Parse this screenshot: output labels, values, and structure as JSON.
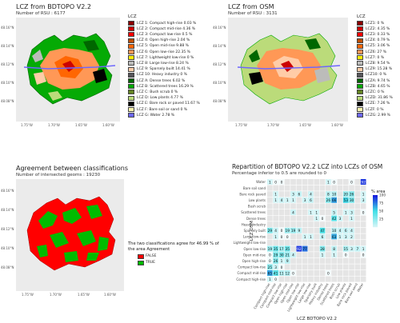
{
  "panel1": {
    "title": "LCZ from   BDTOPO V2.2",
    "subtitle": "Number of RSU : 6177",
    "legend_title": "LCZ",
    "legend": [
      {
        "label": "LCZ 1: Compact high-rise 0.03 %",
        "color": "#8b0101"
      },
      {
        "label": "LCZ 2: Compact mid-rise 4.36 %",
        "color": "#cc0200"
      },
      {
        "label": "LCZ 3: Compact low-rise 0.5 %",
        "color": "#fc0001"
      },
      {
        "label": "LCZ 4: Open high-rise 2.04 %",
        "color": "#be4c03"
      },
      {
        "label": "LCZ 5: Open mid-rise 9.88 %",
        "color": "#ff6602"
      },
      {
        "label": "LCZ 6: Open low-rise 22.35 %",
        "color": "#ff9856"
      },
      {
        "label": "LCZ 7: Lightweight low-rise 0 %",
        "color": "#fbed08"
      },
      {
        "label": "LCZ 8: Large low-rise 8.24 %",
        "color": "#bcbcba"
      },
      {
        "label": "LCZ 9: Sparsely built 14.41 %",
        "color": "#ffcca7"
      },
      {
        "label": "LCZ 10: Heavy industry 0 %",
        "color": "#57555a"
      },
      {
        "label": "LCZ A: Dense trees 6.02 %",
        "color": "#006700"
      },
      {
        "label": "LCZ B: Scattered trees 16.29 %",
        "color": "#05aa05"
      },
      {
        "label": "LCZ C: Bush scrub 0 %",
        "color": "#648423"
      },
      {
        "label": "LCZ D: Low plants 4.77 %",
        "color": "#bbdb7a"
      },
      {
        "label": "LCZ E: Bare rock or paved 11.67 %",
        "color": "#010101"
      },
      {
        "label": "LCZ F: Bare soil or sand 0 %",
        "color": "#fdf6ae"
      },
      {
        "label": "LCZ G: Water 2.78 %",
        "color": "#6d67fd"
      }
    ],
    "lat_ticks": [
      "48.16°N",
      "48.14°N",
      "48.12°N",
      "48.10°N",
      "48.08°N"
    ],
    "lon_ticks": [
      "1.75°W",
      "1.70°W",
      "1.65°W",
      "1.60°W"
    ]
  },
  "panel2": {
    "title": "LCZ from   OSM",
    "subtitle": "Number of RSU : 3131",
    "legend_title": "LCZ",
    "legend": [
      {
        "label": "LCZ1: 0 %",
        "color": "#8b0101"
      },
      {
        "label": "LCZ2: 4.35 %",
        "color": "#cc0200"
      },
      {
        "label": "LCZ3: 0.33 %",
        "color": "#fc0001"
      },
      {
        "label": "LCZ4: 0.79 %",
        "color": "#be4c03"
      },
      {
        "label": "LCZ5: 3.06 %",
        "color": "#ff6602"
      },
      {
        "label": "LCZ6: 27 %",
        "color": "#ff9856"
      },
      {
        "label": "LCZ7: 0 %",
        "color": "#fbed08"
      },
      {
        "label": "LCZ8: 9.54 %",
        "color": "#bcbcba"
      },
      {
        "label": "LCZ9: 15.28 %",
        "color": "#ffcca7"
      },
      {
        "label": "LCZ10: 0 %",
        "color": "#57555a"
      },
      {
        "label": "LCZA: 9.74 %",
        "color": "#006700"
      },
      {
        "label": "LCZB: 4.65 %",
        "color": "#05aa05"
      },
      {
        "label": "LCZC: 0 %",
        "color": "#648423"
      },
      {
        "label": "LCZD: 31.86 %",
        "color": "#bbdb7a"
      },
      {
        "label": "LCZE: 7.26 %",
        "color": "#010101"
      },
      {
        "label": "LCZF: 0 %",
        "color": "#fdf6ae"
      },
      {
        "label": "LCZG: 2.99 %",
        "color": "#6d67fd"
      }
    ],
    "lat_ticks": [
      "48.16°N",
      "48.14°N",
      "48.12°N",
      "48.10°N",
      "48.08°N"
    ],
    "lon_ticks": [
      "1.75°W",
      "1.70°W",
      "1.65°W",
      "1.60°W"
    ]
  },
  "panel3": {
    "title": "Agreement between classifications",
    "subtitle": "Number of intersected geoms : 19230",
    "agreement_text": "The two classifications agree for 46.99 % of the area Agreement",
    "legend": [
      {
        "label": "FALSE",
        "color": "#ff0000"
      },
      {
        "label": "TRUE",
        "color": "#00bb00"
      }
    ],
    "lat_ticks": [
      "48.16°N",
      "48.14°N",
      "48.12°N",
      "48.10°N",
      "48.08°N"
    ],
    "lon_ticks": [
      "1.75°W",
      "1.70°W",
      "1.65°W",
      "1.60°W"
    ]
  },
  "chart_data": [
    {
      "type": "map",
      "title": "LCZ from   BDTOPO V2.2",
      "subtitle": "Number of RSU : 6177"
    },
    {
      "type": "map",
      "title": "LCZ from   OSM",
      "subtitle": "Number of RSU : 3131"
    },
    {
      "type": "map",
      "title": "Agreement between classifications",
      "subtitle": "Number of intersected geoms : 19230"
    },
    {
      "type": "heatmap",
      "title": "Repartition of  BDTOPO V2.2  LCZ into LCZs of  OSM",
      "subtitle": "Percentage inferior to 0.5 are rounded to 0",
      "xlabel": "LCZ  BDTOPO V2.2",
      "ylabel": "LCZ  OSM",
      "x_categories": [
        "Compact high-rise",
        "Compact mid-rise",
        "Compact low-rise",
        "Open high-rise",
        "Open mid-rise",
        "Open low-rise",
        "Lightweight low-rise",
        "Large low-rise",
        "Sparsely built",
        "Heavy industry",
        "Dense trees",
        "Scattered trees",
        "Bush scrub",
        "Low plants",
        "Bare rock paved",
        "Bare soil sand",
        "Water"
      ],
      "y_categories": [
        "Water",
        "Bare soil sand",
        "Bare rock paved",
        "Low plants",
        "Bush scrub",
        "Scattered trees",
        "Dense trees",
        "Heavy industry",
        "Sparsely built",
        "Large low-rise",
        "Lightweight low-rise",
        "Open low-rise",
        "Open mid-rise",
        "Open high-rise",
        "Compact low-rise",
        "Compact mid-rise",
        "Compact high-rise"
      ],
      "cells": [
        {
          "x": 0,
          "y": 0,
          "v": 1
        },
        {
          "x": 1,
          "y": 0,
          "v": 0
        },
        {
          "x": 2,
          "y": 0,
          "v": 0
        },
        {
          "x": 10,
          "y": 0,
          "v": 1
        },
        {
          "x": 11,
          "y": 0,
          "v": 0
        },
        {
          "x": 14,
          "y": 0,
          "v": 0
        },
        {
          "x": 16,
          "y": 0,
          "v": 92
        },
        {
          "x": 1,
          "y": 2,
          "v": 1
        },
        {
          "x": 4,
          "y": 2,
          "v": 3
        },
        {
          "x": 5,
          "y": 2,
          "v": 6
        },
        {
          "x": 7,
          "y": 2,
          "v": 4
        },
        {
          "x": 10,
          "y": 2,
          "v": 8
        },
        {
          "x": 11,
          "y": 2,
          "v": 10
        },
        {
          "x": 13,
          "y": 2,
          "v": 20
        },
        {
          "x": 14,
          "y": 2,
          "v": 26
        },
        {
          "x": 16,
          "y": 2,
          "v": 1
        },
        {
          "x": 1,
          "y": 3,
          "v": 1
        },
        {
          "x": 2,
          "y": 3,
          "v": 4
        },
        {
          "x": 3,
          "y": 3,
          "v": 1
        },
        {
          "x": 4,
          "y": 3,
          "v": 1
        },
        {
          "x": 6,
          "y": 3,
          "v": 3
        },
        {
          "x": 7,
          "y": 3,
          "v": 6
        },
        {
          "x": 10,
          "y": 3,
          "v": 26
        },
        {
          "x": 11,
          "y": 3,
          "v": 66
        },
        {
          "x": 13,
          "y": 3,
          "v": 53
        },
        {
          "x": 14,
          "y": 3,
          "v": 30
        },
        {
          "x": 16,
          "y": 3,
          "v": 3
        },
        {
          "x": 4,
          "y": 5,
          "v": 4
        },
        {
          "x": 7,
          "y": 5,
          "v": 1
        },
        {
          "x": 8,
          "y": 5,
          "v": 1
        },
        {
          "x": 11,
          "y": 5,
          "v": 5
        },
        {
          "x": 13,
          "y": 5,
          "v": 1
        },
        {
          "x": 14,
          "y": 5,
          "v": 3
        },
        {
          "x": 16,
          "y": 5,
          "v": 0
        },
        {
          "x": 8,
          "y": 6,
          "v": 1
        },
        {
          "x": 9,
          "y": 6,
          "v": 0
        },
        {
          "x": 11,
          "y": 6,
          "v": 42
        },
        {
          "x": 12,
          "y": 6,
          "v": 3
        },
        {
          "x": 14,
          "y": 6,
          "v": 1
        },
        {
          "x": 0,
          "y": 8,
          "v": 29
        },
        {
          "x": 1,
          "y": 8,
          "v": 4
        },
        {
          "x": 2,
          "y": 8,
          "v": 0
        },
        {
          "x": 3,
          "y": 8,
          "v": 19
        },
        {
          "x": 4,
          "y": 8,
          "v": 19
        },
        {
          "x": 5,
          "y": 8,
          "v": 9
        },
        {
          "x": 9,
          "y": 8,
          "v": 47
        },
        {
          "x": 11,
          "y": 8,
          "v": 10
        },
        {
          "x": 12,
          "y": 8,
          "v": 4
        },
        {
          "x": 13,
          "y": 8,
          "v": 6
        },
        {
          "x": 14,
          "y": 8,
          "v": 4
        },
        {
          "x": 1,
          "y": 9,
          "v": 1
        },
        {
          "x": 2,
          "y": 9,
          "v": 0
        },
        {
          "x": 3,
          "y": 9,
          "v": 0
        },
        {
          "x": 6,
          "y": 9,
          "v": 1
        },
        {
          "x": 7,
          "y": 9,
          "v": 1
        },
        {
          "x": 9,
          "y": 9,
          "v": 6
        },
        {
          "x": 11,
          "y": 9,
          "v": 63
        },
        {
          "x": 12,
          "y": 9,
          "v": 1
        },
        {
          "x": 13,
          "y": 9,
          "v": 3
        },
        {
          "x": 14,
          "y": 9,
          "v": 2
        },
        {
          "x": 0,
          "y": 11,
          "v": 19
        },
        {
          "x": 1,
          "y": 11,
          "v": 35
        },
        {
          "x": 2,
          "y": 11,
          "v": 17
        },
        {
          "x": 3,
          "y": 11,
          "v": 35
        },
        {
          "x": 5,
          "y": 11,
          "v": 92
        },
        {
          "x": 6,
          "y": 11,
          "v": 77
        },
        {
          "x": 9,
          "y": 11,
          "v": 28
        },
        {
          "x": 11,
          "y": 11,
          "v": 8
        },
        {
          "x": 13,
          "y": 11,
          "v": 15
        },
        {
          "x": 14,
          "y": 11,
          "v": 3
        },
        {
          "x": 15,
          "y": 11,
          "v": 7
        },
        {
          "x": 16,
          "y": 11,
          "v": 1
        },
        {
          "x": 0,
          "y": 12,
          "v": 0
        },
        {
          "x": 1,
          "y": 12,
          "v": 29
        },
        {
          "x": 2,
          "y": 12,
          "v": 30
        },
        {
          "x": 3,
          "y": 12,
          "v": 21
        },
        {
          "x": 4,
          "y": 12,
          "v": 4
        },
        {
          "x": 9,
          "y": 12,
          "v": 1
        },
        {
          "x": 11,
          "y": 12,
          "v": 1
        },
        {
          "x": 13,
          "y": 12,
          "v": 0
        },
        {
          "x": 16,
          "y": 12,
          "v": 0
        },
        {
          "x": 0,
          "y": 13,
          "v": 0
        },
        {
          "x": 1,
          "y": 13,
          "v": 26
        },
        {
          "x": 2,
          "y": 13,
          "v": 1
        },
        {
          "x": 3,
          "y": 13,
          "v": 9
        },
        {
          "x": 0,
          "y": 14,
          "v": 25
        },
        {
          "x": 1,
          "y": 14,
          "v": 3
        },
        {
          "x": 2,
          "y": 14,
          "v": 0
        },
        {
          "x": 0,
          "y": 15,
          "v": 65
        },
        {
          "x": 1,
          "y": 15,
          "v": 41
        },
        {
          "x": 2,
          "y": 15,
          "v": 11
        },
        {
          "x": 3,
          "y": 15,
          "v": 12
        },
        {
          "x": 4,
          "y": 15,
          "v": 0
        },
        {
          "x": 10,
          "y": 15,
          "v": 0
        },
        {
          "x": 0,
          "y": 16,
          "v": 1
        },
        {
          "x": 1,
          "y": 16,
          "v": 0
        }
      ],
      "colorbar": {
        "label": "% area",
        "ticks": [
          25,
          50,
          75,
          100
        ],
        "range": [
          0,
          100
        ]
      }
    }
  ]
}
